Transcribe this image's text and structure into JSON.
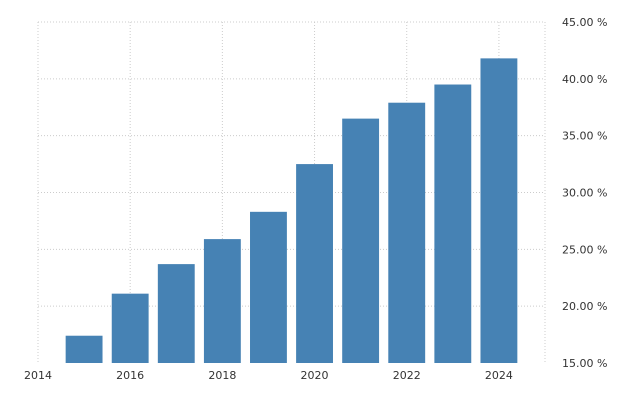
{
  "chart_data": {
    "type": "bar",
    "title": "",
    "xlabel": "",
    "ylabel": "",
    "categories": [
      "2015",
      "2016",
      "2017",
      "2018",
      "2019",
      "2020",
      "2021",
      "2022",
      "2023",
      "2024"
    ],
    "x": [
      2015,
      2016,
      2017,
      2018,
      2019,
      2020,
      2021,
      2022,
      2023,
      2024
    ],
    "values": [
      17.4,
      21.1,
      23.7,
      25.9,
      28.3,
      32.5,
      36.5,
      37.9,
      39.5,
      41.8
    ],
    "unit": "%",
    "ylim": [
      15,
      45
    ],
    "yticks": [
      15,
      20,
      25,
      30,
      35,
      40,
      45
    ],
    "ytick_labels": [
      "15.00 %",
      "20.00 %",
      "25.00 %",
      "30.00 %",
      "35.00 %",
      "40.00 %",
      "45.00 %"
    ],
    "xlim": [
      2014,
      2025
    ],
    "xticks": [
      2014,
      2016,
      2018,
      2020,
      2022,
      2024
    ],
    "xtick_labels": [
      "2014",
      "2016",
      "2018",
      "2020",
      "2022",
      "2024"
    ],
    "y_axis_side": "right",
    "grid": true,
    "legend": "none",
    "bar_color": "#4682b4"
  }
}
